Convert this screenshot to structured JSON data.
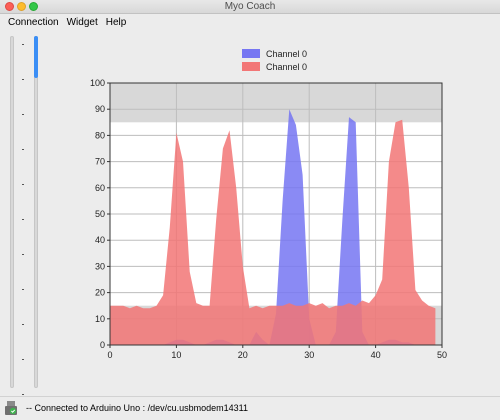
{
  "window": {
    "title": "Myo Coach"
  },
  "menu": {
    "items": [
      "Connection",
      "Widget",
      "Help"
    ]
  },
  "sliders": [
    {
      "name": "left-threshold",
      "level": 1.0
    },
    {
      "name": "right-threshold",
      "level": 0.12
    }
  ],
  "status": {
    "text": "-- Connected to Arduino Uno : /dev/cu.usbmodem14311",
    "icon": "usb-check-icon"
  },
  "colors": {
    "blue": "#7676f2",
    "red": "#f27676",
    "band": "#d8d8d8",
    "accent": "#3b8ef5"
  },
  "chart_data": {
    "type": "area",
    "title": "",
    "xlabel": "",
    "ylabel": "",
    "xlim": [
      0,
      50
    ],
    "ylim": [
      0,
      100
    ],
    "x_ticks": [
      "0",
      "10",
      "20",
      "30",
      "40",
      "50"
    ],
    "y_ticks": [
      "0",
      "10",
      "20",
      "30",
      "40",
      "50",
      "60",
      "70",
      "80",
      "90",
      "100"
    ],
    "grid": true,
    "legend_position": "top-center",
    "threshold_bands": [
      {
        "from": 85,
        "to": 100
      },
      {
        "from": 0,
        "to": 15
      }
    ],
    "series": [
      {
        "name": "Channel 0",
        "color": "#7676f2",
        "x": [
          0,
          1,
          2,
          3,
          4,
          5,
          6,
          7,
          8,
          9,
          10,
          11,
          12,
          13,
          14,
          15,
          16,
          17,
          18,
          19,
          20,
          21,
          22,
          23,
          24,
          25,
          26,
          27,
          28,
          29,
          30,
          31,
          32,
          33,
          34,
          35,
          36,
          37,
          38,
          39,
          40,
          41,
          42,
          43,
          44,
          45,
          46,
          47,
          48,
          49
        ],
        "values": [
          0,
          0,
          0,
          0,
          0,
          0,
          0,
          0,
          0,
          1,
          2,
          2,
          1,
          0,
          0,
          1,
          2,
          2,
          1,
          0,
          0,
          0,
          5,
          2,
          0,
          12,
          55,
          90,
          84,
          65,
          10,
          0,
          0,
          0,
          5,
          48,
          87,
          85,
          5,
          0,
          0,
          1,
          2,
          2,
          1,
          1,
          0,
          0,
          0,
          0
        ]
      },
      {
        "name": "Channel 0",
        "color": "#f27676",
        "x": [
          0,
          1,
          2,
          3,
          4,
          5,
          6,
          7,
          8,
          9,
          10,
          11,
          12,
          13,
          14,
          15,
          16,
          17,
          18,
          19,
          20,
          21,
          22,
          23,
          24,
          25,
          26,
          27,
          28,
          29,
          30,
          31,
          32,
          33,
          34,
          35,
          36,
          37,
          38,
          39,
          40,
          41,
          42,
          43,
          44,
          45,
          46,
          47,
          48,
          49
        ],
        "values": [
          15,
          15,
          15,
          14,
          15,
          14,
          14,
          15,
          19,
          45,
          81,
          70,
          28,
          16,
          15,
          15,
          48,
          75,
          82,
          60,
          30,
          14,
          15,
          14,
          15,
          15,
          15,
          16,
          15,
          15,
          16,
          15,
          16,
          14,
          15,
          15,
          16,
          15,
          17,
          16,
          19,
          25,
          70,
          85,
          86,
          60,
          21,
          17,
          15,
          14
        ]
      }
    ]
  }
}
